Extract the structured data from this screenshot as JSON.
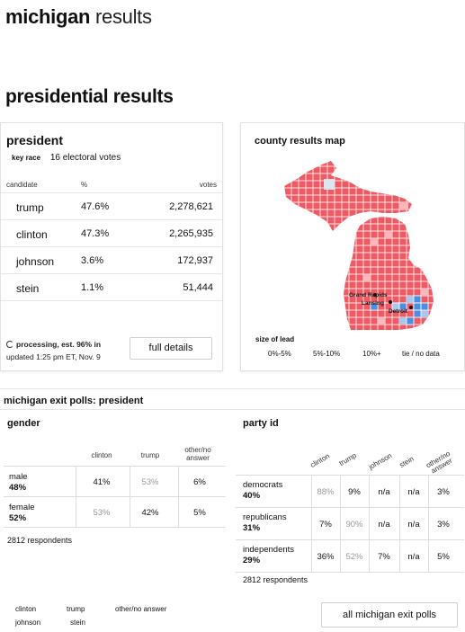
{
  "header": {
    "title_bold": "michigan",
    "title_light": "results"
  },
  "page_title": "presidential results",
  "president": {
    "title": "president",
    "key_race_tag": "key race",
    "electoral_votes": "16 electoral votes",
    "columns": {
      "candidate": "candidate",
      "pct": "%",
      "votes": "votes"
    },
    "candidates": [
      {
        "name": "trump",
        "pct": "47.6%",
        "votes": "2,278,621"
      },
      {
        "name": "clinton",
        "pct": "47.3%",
        "votes": "2,265,935"
      },
      {
        "name": "johnson",
        "pct": "3.6%",
        "votes": "172,937"
      },
      {
        "name": "stein",
        "pct": "1.1%",
        "votes": "51,444"
      }
    ],
    "status_bold": "processing, est. 96% in",
    "status_updated": "updated 1:25 pm ET, Nov. 9",
    "full_details_label": "full details"
  },
  "map": {
    "title": "county results map",
    "cities": {
      "grand_rapids": "Grand Rapids",
      "lansing": "Lansing",
      "detroit": "Detroit"
    },
    "size_of_lead_label": "size of lead",
    "legend": [
      "0%-5%",
      "5%-10%",
      "10%+",
      "tie / no data"
    ],
    "colors": {
      "trump": "#ee5a64",
      "trump_light": "#f7b7bb",
      "clinton": "#4b8fe0",
      "clinton_light": "#a9c8ee",
      "tie": "#dde6f0"
    }
  },
  "exit_polls": {
    "title": "michigan exit polls: president",
    "gender": {
      "title": "gender",
      "columns": [
        "clinton",
        "trump",
        "other/no answer"
      ],
      "rows": [
        {
          "label": "male",
          "share": "48%",
          "values": [
            "41%",
            "53%",
            "6%"
          ]
        },
        {
          "label": "female",
          "share": "52%",
          "values": [
            "53%",
            "42%",
            "5%"
          ]
        }
      ],
      "respondents": "2812 respondents"
    },
    "party": {
      "title": "party id",
      "columns": [
        "clinton",
        "trump",
        "johnson",
        "stein",
        "other/no answer"
      ],
      "rows": [
        {
          "label": "democrats",
          "share": "40%",
          "values": [
            "88%",
            "9%",
            "n/a",
            "n/a",
            "3%"
          ]
        },
        {
          "label": "republicans",
          "share": "31%",
          "values": [
            "7%",
            "90%",
            "n/a",
            "n/a",
            "3%"
          ]
        },
        {
          "label": "independents",
          "share": "29%",
          "values": [
            "36%",
            "52%",
            "7%",
            "n/a",
            "5%"
          ]
        }
      ],
      "respondents": "2812 respondents"
    },
    "key": [
      "clinton",
      "trump",
      "other/no answer",
      "johnson",
      "stein"
    ],
    "all_polls_label": "all michigan exit polls"
  }
}
